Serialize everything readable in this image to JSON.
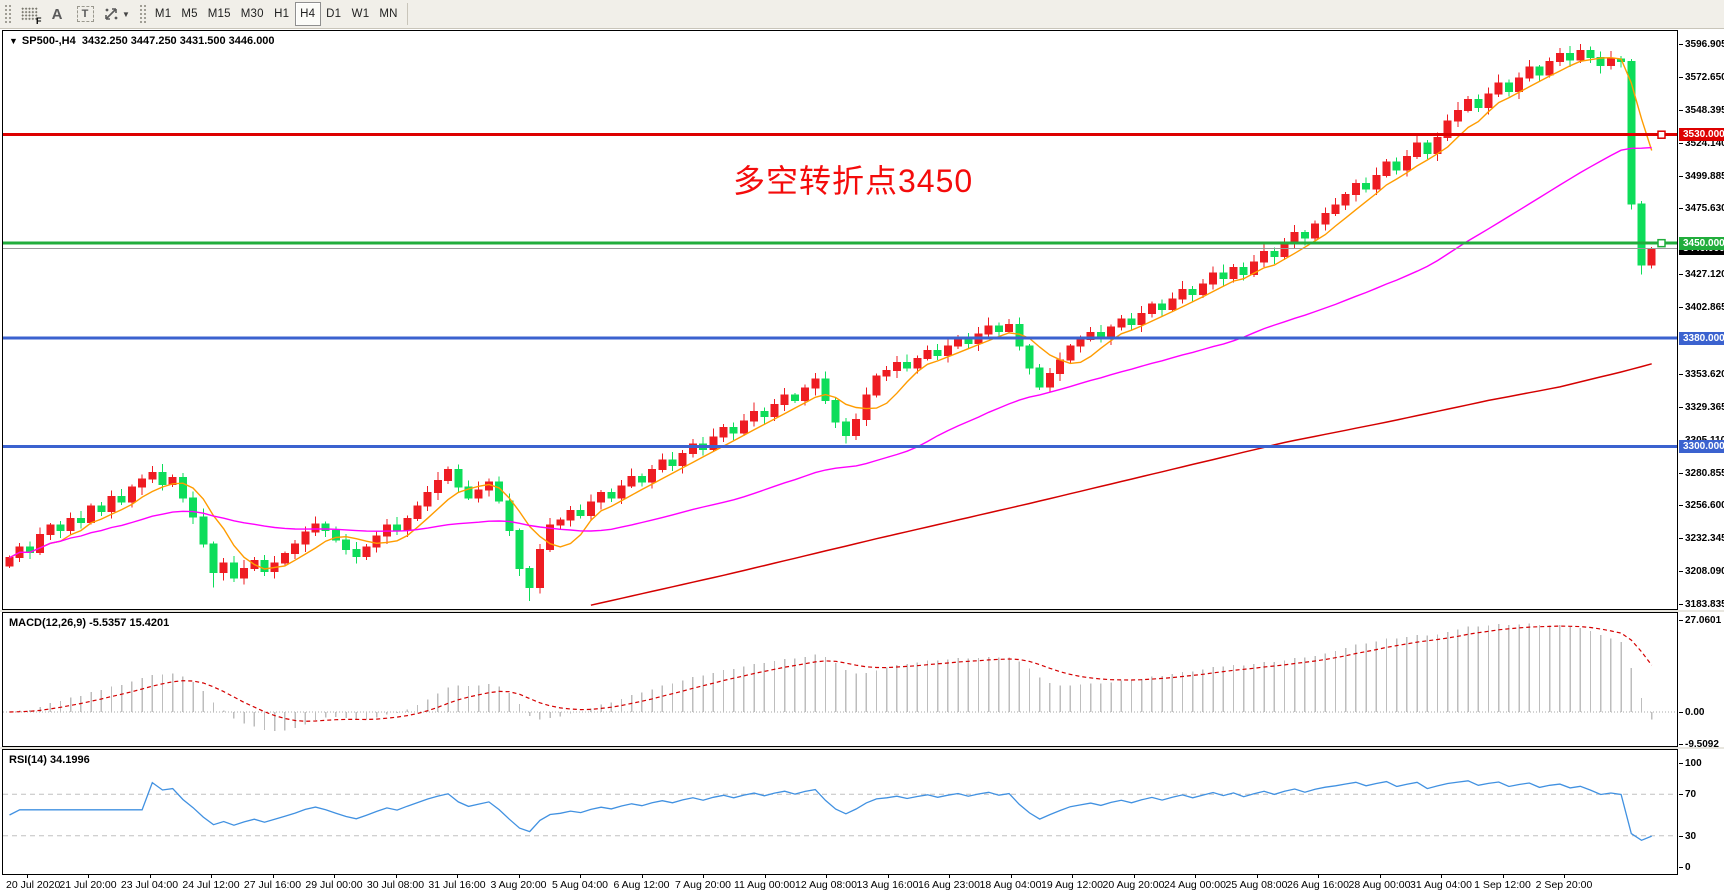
{
  "toolbar": {
    "tools": [
      {
        "name": "grid-f-icon",
        "label": "F"
      },
      {
        "name": "text-label-icon",
        "label": "A"
      },
      {
        "name": "text-tool-icon",
        "label": "T"
      },
      {
        "name": "cursor-mode-icon",
        "label": ""
      }
    ],
    "timeframes": [
      "M1",
      "M5",
      "M15",
      "M30",
      "H1",
      "H4",
      "D1",
      "W1",
      "MN"
    ],
    "active_timeframe": "H4"
  },
  "header": {
    "symbol": "SP500-,H4",
    "ohlc": "3432.250 3447.250 3431.500 3446.000",
    "dropdown_triangle": "▼"
  },
  "annotation": {
    "text": "多空转折点3450",
    "color": "#f40b0b"
  },
  "chart_data": {
    "type": "candlestick",
    "symbol": "SP500-,H4",
    "timeframe": "H4",
    "up_color": "#ee1c22",
    "down_color": "#0ddd5a",
    "ma_fast": {
      "name": "ma-fast-orange",
      "period": 6,
      "color": "#ff9c00"
    },
    "ma_mid": {
      "name": "ma-mid-magenta",
      "period": 40,
      "color": "#ff00ff"
    },
    "ma_slow": {
      "name": "ma-slow-red",
      "color": "#d40000",
      "anchors": [
        [
          57,
          3183
        ],
        [
          70,
          3205
        ],
        [
          85,
          3232
        ],
        [
          100,
          3258
        ],
        [
          115,
          3285
        ],
        [
          125,
          3303
        ],
        [
          135,
          3318
        ],
        [
          145,
          3334
        ],
        [
          152,
          3344
        ],
        [
          158,
          3355
        ],
        [
          161,
          3361
        ]
      ]
    },
    "closes": [
      3218,
      3226,
      3222,
      3235,
      3242,
      3238,
      3247,
      3244,
      3256,
      3252,
      3263,
      3259,
      3270,
      3276,
      3281,
      3272,
      3277,
      3262,
      3248,
      3228,
      3207,
      3214,
      3203,
      3210,
      3216,
      3208,
      3214,
      3221,
      3228,
      3237,
      3243,
      3238,
      3231,
      3224,
      3219,
      3226,
      3234,
      3242,
      3238,
      3247,
      3256,
      3266,
      3275,
      3283,
      3270,
      3262,
      3268,
      3274,
      3260,
      3238,
      3210,
      3196,
      3224,
      3242,
      3246,
      3253,
      3249,
      3259,
      3266,
      3262,
      3271,
      3278,
      3274,
      3283,
      3290,
      3286,
      3295,
      3302,
      3298,
      3307,
      3314,
      3310,
      3319,
      3326,
      3322,
      3331,
      3338,
      3334,
      3343,
      3350,
      3334,
      3318,
      3308,
      3320,
      3338,
      3352,
      3356,
      3362,
      3358,
      3365,
      3371,
      3367,
      3374,
      3380,
      3376,
      3383,
      3389,
      3385,
      3390,
      3374,
      3358,
      3344,
      3354,
      3364,
      3374,
      3379,
      3384,
      3380,
      3388,
      3394,
      3390,
      3398,
      3405,
      3401,
      3409,
      3416,
      3412,
      3420,
      3428,
      3424,
      3432,
      3427,
      3436,
      3444,
      3440,
      3450,
      3458,
      3454,
      3464,
      3472,
      3478,
      3486,
      3494,
      3490,
      3500,
      3510,
      3504,
      3514,
      3524,
      3516,
      3528,
      3540,
      3548,
      3556,
      3550,
      3560,
      3568,
      3562,
      3572,
      3580,
      3574,
      3584,
      3590,
      3585,
      3592,
      3587,
      3581,
      3586,
      3584,
      3479,
      3434,
      3446
    ],
    "first_open": 3212,
    "wick_overrides": {
      "20": [
        2,
        11
      ],
      "51": [
        2,
        10
      ],
      "154": [
        4.9,
        2
      ],
      "159": [
        2,
        4
      ],
      "160": [
        2,
        7
      ],
      "161": [
        1.25,
        2.5
      ]
    },
    "levels": [
      {
        "label": "3530.000",
        "price": 3530,
        "color": "#dd0000",
        "line_width": 3,
        "handle": true,
        "current": false
      },
      {
        "label": "3450.000",
        "price": 3450,
        "color": "#21ad3c",
        "line_width": 3,
        "handle": true,
        "current": false
      },
      {
        "label": "3380.000",
        "price": 3380,
        "color": "#3b62cf",
        "line_width": 3,
        "handle": false,
        "current": false
      },
      {
        "label": "3300.000",
        "price": 3300,
        "color": "#3b62cf",
        "line_width": 3,
        "handle": false,
        "current": false
      },
      {
        "label": "3446.000",
        "price": 3446,
        "color": "#000000",
        "line_width": 1,
        "handle": false,
        "current": true
      }
    ],
    "current_price_line_color": "#9a9a9a",
    "y_axis": {
      "ticks": [
        "3596.905",
        "3572.650",
        "3548.395",
        "3524.140",
        "3499.885",
        "3475.630",
        "3427.120",
        "3402.865",
        "3353.620",
        "3329.365",
        "3305.110",
        "3280.855",
        "3256.600",
        "3232.345",
        "3208.090",
        "3183.835"
      ]
    },
    "macd": {
      "label": "MACD(12,26,9)",
      "value_main": "-5.5357",
      "value_signal": "15.4201",
      "fast": 12,
      "slow": 26,
      "signal": 9,
      "ticks": [
        {
          "label": "27.0601",
          "value": 27.0601
        },
        {
          "label": "0.00",
          "value": 0
        },
        {
          "label": "-9.5092",
          "value": -9.5092
        }
      ],
      "histogram_color": "#bdbdbd",
      "signal_color": "#d40000"
    },
    "rsi": {
      "label": "RSI(14)",
      "value": "34.1996",
      "period": 14,
      "ticks": [
        {
          "label": "100",
          "value": 100
        },
        {
          "label": "70",
          "value": 70
        },
        {
          "label": "30",
          "value": 30
        },
        {
          "label": "0",
          "value": 0
        }
      ],
      "level_lines": [
        70,
        30
      ],
      "line_color": "#4191e1",
      "level_color": "#c0c0c0"
    },
    "time_labels": [
      "20 Jul 2020",
      "21 Jul 20:00",
      "23 Jul 04:00",
      "24 Jul 12:00",
      "27 Jul 16:00",
      "29 Jul 00:00",
      "30 Jul 08:00",
      "31 Jul 16:00",
      "3 Aug 20:00",
      "5 Aug 04:00",
      "6 Aug 12:00",
      "7 Aug 20:00",
      "11 Aug 00:00",
      "12 Aug 08:00",
      "13 Aug 16:00",
      "16 Aug 23:00",
      "18 Aug 04:00",
      "19 Aug 12:00",
      "20 Aug 20:00",
      "24 Aug 00:00",
      "25 Aug 08:00",
      "26 Aug 16:00",
      "28 Aug 00:00",
      "31 Aug 04:00",
      "1 Sep 12:00",
      "2 Sep 20:00"
    ]
  }
}
